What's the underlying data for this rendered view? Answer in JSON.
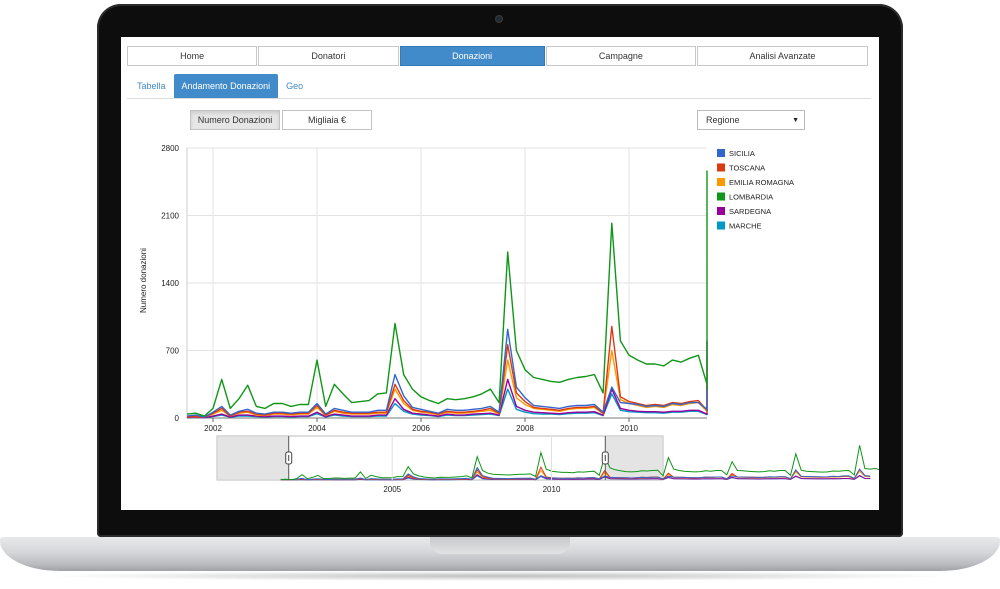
{
  "nav": {
    "items": [
      {
        "label": "Home"
      },
      {
        "label": "Donatori"
      },
      {
        "label": "Donazioni",
        "active": true
      },
      {
        "label": "Campagne"
      },
      {
        "label": "Analisi Avanzate"
      }
    ]
  },
  "subtabs": [
    {
      "label": "Tabella"
    },
    {
      "label": "Andamento Donazioni",
      "active": true
    },
    {
      "label": "Geo"
    }
  ],
  "toggles": [
    {
      "label": "Numero Donazioni",
      "active": true
    },
    {
      "label": "Migliaia €"
    }
  ],
  "select": {
    "value": "Regione"
  },
  "chart_data": {
    "type": "line",
    "ylabel": "Numero donazioni",
    "xlabel": "",
    "ylim": [
      0,
      2800
    ],
    "yticks": [
      0,
      700,
      1400,
      2100,
      2800
    ],
    "xlim": [
      2001.5,
      2011.5
    ],
    "xticks": [
      "2002",
      "2004",
      "2006",
      "2008",
      "2010"
    ],
    "legend_position": "right",
    "grid": true,
    "x_start": 2001.5,
    "x_step": 0.1667,
    "series": [
      {
        "name": "SICILIA",
        "color": "#3366cc",
        "values": [
          20,
          30,
          10,
          60,
          120,
          30,
          70,
          90,
          50,
          40,
          60,
          60,
          50,
          60,
          60,
          150,
          40,
          100,
          80,
          60,
          60,
          60,
          80,
          80,
          450,
          230,
          110,
          90,
          70,
          50,
          90,
          80,
          80,
          90,
          100,
          120,
          60,
          920,
          320,
          210,
          130,
          120,
          110,
          100,
          120,
          130,
          130,
          140,
          60,
          320,
          160,
          150,
          140,
          120,
          130,
          120,
          150,
          140,
          160,
          160,
          90,
          300,
          190,
          180,
          170,
          160,
          150,
          160,
          190,
          180,
          200,
          200,
          80,
          280,
          210,
          200,
          190,
          180,
          170,
          180,
          210,
          200,
          220,
          220,
          100,
          300,
          230,
          220,
          210,
          200,
          190,
          200,
          230,
          220,
          240,
          240,
          100,
          750,
          270,
          260,
          250,
          240,
          230,
          240,
          270,
          260,
          300,
          300,
          120,
          800,
          330,
          270
        ]
      },
      {
        "name": "TOSCANA",
        "color": "#dc3912",
        "values": [
          10,
          20,
          10,
          50,
          100,
          20,
          60,
          70,
          40,
          30,
          50,
          50,
          40,
          50,
          50,
          130,
          30,
          80,
          60,
          50,
          50,
          50,
          60,
          60,
          350,
          180,
          90,
          70,
          60,
          40,
          70,
          60,
          60,
          70,
          80,
          100,
          50,
          760,
          260,
          170,
          110,
          100,
          90,
          80,
          100,
          110,
          110,
          120,
          50,
          950,
          220,
          170,
          150,
          130,
          140,
          130,
          160,
          150,
          170,
          180,
          80,
          700,
          200,
          180,
          170,
          160,
          150,
          170,
          200,
          190,
          220,
          220,
          70,
          500,
          210,
          200,
          190,
          180,
          170,
          180,
          210,
          200,
          220,
          220,
          90,
          480,
          230,
          220,
          210,
          200,
          190,
          200,
          230,
          220,
          240,
          240,
          90,
          720,
          260,
          250,
          240,
          230,
          220,
          230,
          260,
          250,
          280,
          280,
          110,
          790,
          300,
          260
        ]
      },
      {
        "name": "EMILIA ROMAGNA",
        "color": "#ff9900",
        "values": [
          10,
          15,
          10,
          40,
          80,
          20,
          50,
          60,
          30,
          25,
          40,
          40,
          30,
          40,
          40,
          110,
          25,
          70,
          50,
          40,
          40,
          40,
          50,
          50,
          300,
          150,
          80,
          60,
          50,
          35,
          60,
          50,
          50,
          60,
          70,
          80,
          45,
          600,
          210,
          140,
          100,
          90,
          80,
          70,
          90,
          100,
          100,
          110,
          45,
          700,
          190,
          150,
          130,
          110,
          120,
          110,
          140,
          130,
          150,
          160,
          70,
          560,
          180,
          160,
          150,
          140,
          130,
          150,
          180,
          170,
          190,
          190,
          60,
          430,
          190,
          180,
          170,
          160,
          150,
          160,
          190,
          180,
          200,
          200,
          80,
          400,
          200,
          190,
          180,
          170,
          160,
          170,
          200,
          190,
          210,
          210,
          80,
          600,
          230,
          220,
          210,
          200,
          190,
          200,
          230,
          220,
          250,
          250,
          100,
          650,
          270,
          230
        ]
      },
      {
        "name": "LOMBARDIA",
        "color": "#109618",
        "values": [
          40,
          50,
          20,
          100,
          400,
          100,
          200,
          340,
          120,
          100,
          150,
          150,
          120,
          140,
          140,
          600,
          120,
          350,
          250,
          160,
          170,
          180,
          250,
          260,
          980,
          450,
          300,
          220,
          180,
          150,
          200,
          190,
          200,
          220,
          250,
          300,
          160,
          1720,
          700,
          500,
          420,
          400,
          380,
          370,
          400,
          420,
          430,
          450,
          260,
          2020,
          800,
          650,
          600,
          560,
          560,
          540,
          600,
          580,
          620,
          650,
          350,
          1720,
          900,
          750,
          680,
          620,
          600,
          620,
          680,
          660,
          700,
          720,
          300,
          1640,
          800,
          700,
          650,
          620,
          600,
          620,
          680,
          650,
          700,
          700,
          380,
          1350,
          700,
          680,
          650,
          620,
          600,
          620,
          680,
          650,
          700,
          700,
          350,
          1930,
          720,
          650,
          620,
          600,
          580,
          600,
          660,
          640,
          680,
          700,
          370,
          2560,
          850,
          800,
          850,
          720
        ]
      },
      {
        "name": "SARDEGNA",
        "color": "#990099",
        "values": [
          5,
          8,
          5,
          20,
          40,
          10,
          30,
          30,
          20,
          15,
          20,
          20,
          15,
          20,
          20,
          60,
          15,
          40,
          30,
          20,
          20,
          20,
          30,
          30,
          200,
          90,
          50,
          40,
          30,
          20,
          40,
          30,
          30,
          40,
          45,
          50,
          30,
          400,
          120,
          80,
          60,
          55,
          50,
          45,
          55,
          60,
          60,
          65,
          30,
          300,
          100,
          80,
          70,
          65,
          65,
          60,
          70,
          70,
          80,
          80,
          40,
          250,
          100,
          90,
          85,
          80,
          75,
          80,
          90,
          85,
          95,
          95,
          40,
          200,
          95,
          90,
          85,
          80,
          75,
          80,
          90,
          85,
          95,
          95,
          45,
          200,
          100,
          95,
          90,
          85,
          80,
          85,
          95,
          90,
          100,
          100,
          45,
          300,
          110,
          100,
          95,
          90,
          85,
          90,
          100,
          95,
          110,
          110,
          50,
          330,
          120,
          110
        ]
      },
      {
        "name": "MARCHE",
        "color": "#0099c6",
        "values": [
          5,
          6,
          5,
          15,
          30,
          8,
          20,
          20,
          15,
          10,
          15,
          15,
          10,
          15,
          15,
          45,
          10,
          30,
          20,
          15,
          15,
          15,
          20,
          20,
          150,
          70,
          40,
          30,
          25,
          15,
          30,
          25,
          25,
          30,
          35,
          40,
          25,
          300,
          90,
          60,
          45,
          40,
          40,
          35,
          45,
          50,
          50,
          55,
          25,
          250,
          80,
          65,
          60,
          55,
          55,
          50,
          60,
          60,
          70,
          70,
          35,
          220,
          85,
          80,
          75,
          70,
          65,
          70,
          80,
          75,
          85,
          85,
          35,
          180,
          85,
          80,
          75,
          70,
          65,
          70,
          80,
          75,
          85,
          85,
          40,
          170,
          90,
          85,
          80,
          75,
          70,
          75,
          85,
          80,
          90,
          90,
          40,
          260,
          100,
          90,
          85,
          80,
          75,
          80,
          90,
          85,
          100,
          100,
          45,
          290,
          110,
          100
        ]
      }
    ],
    "navigator": {
      "xticks": [
        "2005",
        "2010"
      ],
      "selection_from": 2001.5,
      "selection_to": 2011.5
    }
  }
}
